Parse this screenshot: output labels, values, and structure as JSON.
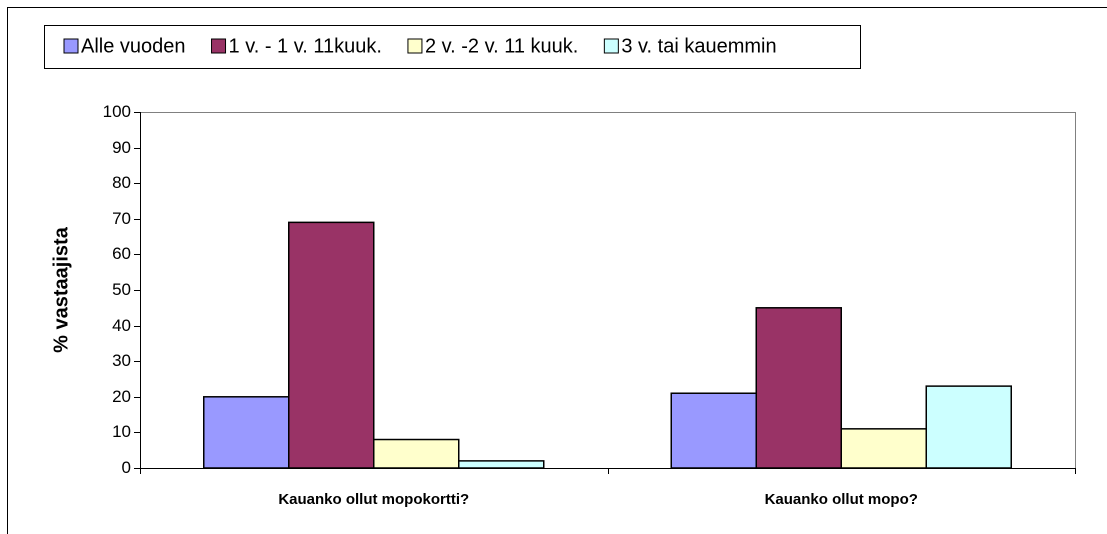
{
  "chart_data": {
    "type": "bar",
    "y_label": "% vastaajista",
    "categories": [
      "Kauanko ollut mopokortti?",
      "Kauanko ollut mopo?"
    ],
    "series": [
      {
        "name": "Alle vuoden",
        "color": "#9999ff",
        "values": [
          20,
          21
        ]
      },
      {
        "name": "1 v. - 1 v. 11kuuk.",
        "color": "#993366",
        "values": [
          69,
          45
        ]
      },
      {
        "name": "2 v. -2 v. 11 kuuk.",
        "color": "#ffffcc",
        "values": [
          8,
          11
        ]
      },
      {
        "name": "3 v. tai kauemmin",
        "color": "#ccffff",
        "values": [
          2,
          23
        ]
      }
    ],
    "ylim": [
      0,
      100
    ],
    "yticks": [
      0,
      10,
      20,
      30,
      40,
      50,
      60,
      70,
      80,
      90,
      100
    ],
    "grid": false,
    "legend": "top"
  }
}
